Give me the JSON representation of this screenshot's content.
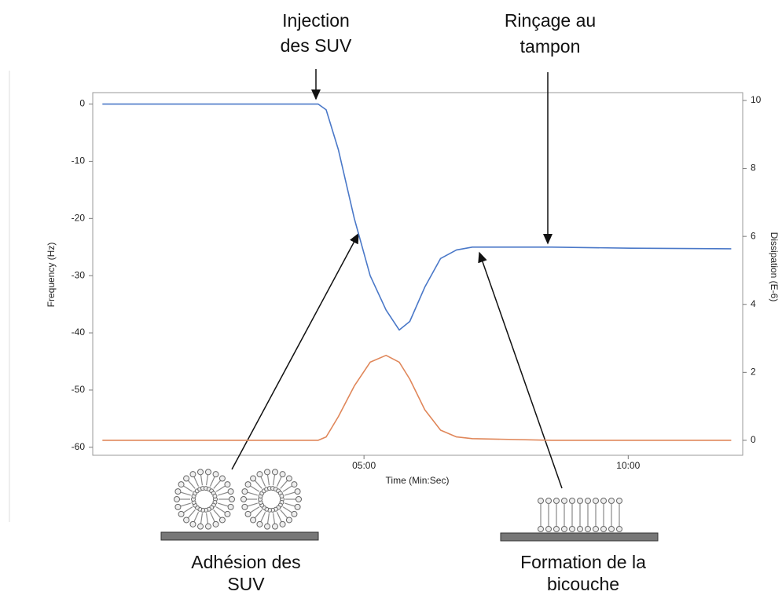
{
  "chart_data": {
    "type": "line",
    "x": [
      3,
      248,
      257,
      271,
      289,
      307,
      325,
      340,
      352,
      369,
      387,
      405,
      423,
      513,
      603,
      717
    ],
    "series": [
      {
        "color": "#4a78c8",
        "values": [
          0,
          0,
          -1,
          -8,
          -20,
          -30,
          -36,
          -39.5,
          -38,
          -32,
          -27,
          -25.5,
          -25,
          -25,
          -25.2,
          -25.3
        ]
      },
      {
        "color": "#e0875a",
        "axis": "y2",
        "values": [
          0,
          0,
          0.1,
          0.7,
          1.6,
          2.3,
          2.5,
          2.3,
          1.8,
          0.9,
          0.3,
          0.1,
          0.05,
          0,
          0,
          0
        ]
      }
    ],
    "xlim": [
      -8,
      730
    ],
    "xticks": [
      {
        "value": 300,
        "label": "05:00"
      },
      {
        "value": 600,
        "label": "10:00"
      }
    ],
    "ylim": [
      -61.4,
      2
    ],
    "yticks": [
      0,
      -10,
      -20,
      -30,
      -40,
      -50,
      -60
    ],
    "y2lim": [
      -0.44,
      10.23
    ],
    "y2ticks": [
      0,
      2,
      4,
      6,
      8,
      10
    ],
    "xlabel": "Time (Min:Sec)",
    "ylabel": "Frequency (Hz)",
    "y2label": "Dissipation (E-6)",
    "annotations": [
      {
        "lines": [
          "Injection",
          "des SUV"
        ]
      },
      {
        "lines": [
          "Rinçage au",
          "tampon"
        ]
      },
      {
        "lines": [
          "Adhésion des",
          "SUV"
        ]
      },
      {
        "lines": [
          "Formation de la",
          "bicouche"
        ]
      }
    ]
  }
}
